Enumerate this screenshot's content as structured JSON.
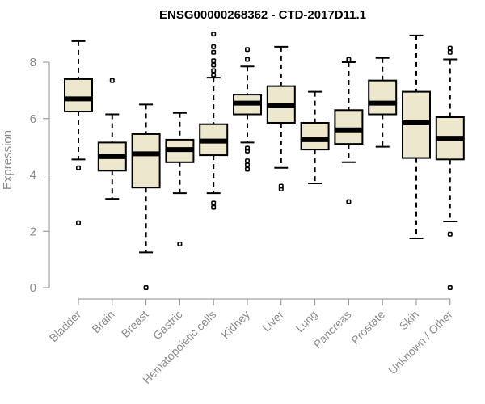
{
  "chart_data": {
    "type": "box",
    "title": "ENSG00000268362 - CTD-2017D11.1",
    "ylabel": "Expression",
    "xlabel": "",
    "ylim": [
      0,
      9
    ],
    "yticks": [
      0,
      2,
      4,
      6,
      8
    ],
    "box_color": "#ede7cd",
    "categories": [
      "Bladder",
      "Brain",
      "Breast",
      "Gastric",
      "Hematopoietic cells",
      "Kidney",
      "Liver",
      "Lung",
      "Pancreas",
      "Prostate",
      "Skin",
      "Unknown / Other"
    ],
    "boxes": [
      {
        "q1": 6.25,
        "median": 6.7,
        "q3": 7.4,
        "whislo": 4.55,
        "whishi": 8.75,
        "fliers": [
          4.25,
          2.3
        ]
      },
      {
        "q1": 4.15,
        "median": 4.65,
        "q3": 5.15,
        "whislo": 3.15,
        "whishi": 6.15,
        "fliers": [
          7.35
        ]
      },
      {
        "q1": 3.55,
        "median": 4.75,
        "q3": 5.45,
        "whislo": 1.25,
        "whishi": 6.5,
        "fliers": [
          0.0
        ]
      },
      {
        "q1": 4.45,
        "median": 4.9,
        "q3": 5.25,
        "whislo": 3.35,
        "whishi": 6.2,
        "fliers": [
          1.55
        ]
      },
      {
        "q1": 4.7,
        "median": 5.2,
        "q3": 5.8,
        "whislo": 3.35,
        "whishi": 7.45,
        "fliers": [
          2.85,
          3.0,
          7.55,
          7.7,
          7.9,
          8.05,
          8.35,
          8.55,
          9.0
        ]
      },
      {
        "q1": 6.15,
        "median": 6.55,
        "q3": 6.85,
        "whislo": 5.15,
        "whishi": 7.85,
        "fliers": [
          4.2,
          4.35,
          4.5,
          4.85,
          4.95,
          8.1,
          8.45
        ]
      },
      {
        "q1": 5.85,
        "median": 6.45,
        "q3": 7.15,
        "whislo": 4.25,
        "whishi": 8.55,
        "fliers": [
          3.5,
          3.6
        ]
      },
      {
        "q1": 4.9,
        "median": 5.25,
        "q3": 5.85,
        "whislo": 3.7,
        "whishi": 6.95,
        "fliers": []
      },
      {
        "q1": 5.1,
        "median": 5.6,
        "q3": 6.3,
        "whislo": 4.45,
        "whishi": 8.0,
        "fliers": [
          3.05,
          8.1
        ]
      },
      {
        "q1": 6.15,
        "median": 6.55,
        "q3": 7.35,
        "whislo": 5.0,
        "whishi": 8.15,
        "fliers": []
      },
      {
        "q1": 4.6,
        "median": 5.85,
        "q3": 6.95,
        "whislo": 1.75,
        "whishi": 8.95,
        "fliers": []
      },
      {
        "q1": 4.55,
        "median": 5.3,
        "q3": 6.05,
        "whislo": 2.35,
        "whishi": 8.1,
        "fliers": [
          0.0,
          1.9,
          8.35,
          8.5
        ]
      }
    ],
    "grid": false,
    "legend": "none"
  }
}
